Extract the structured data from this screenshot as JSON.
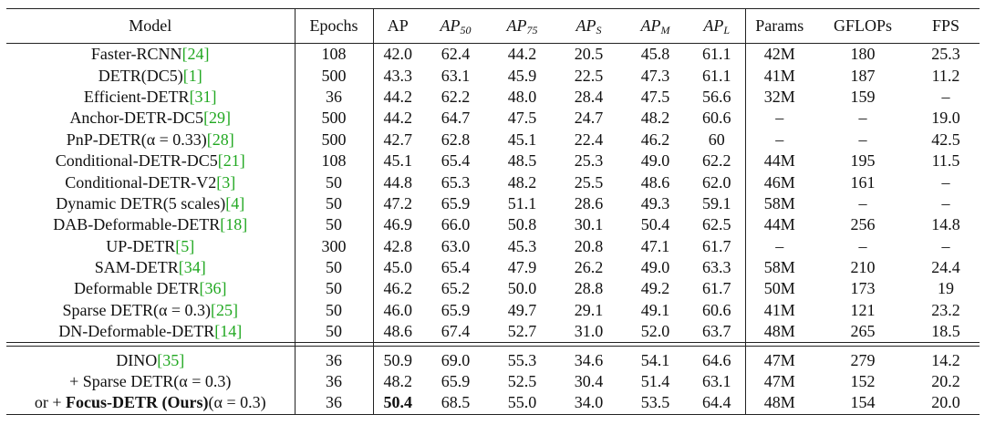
{
  "columns": [
    {
      "key": "model",
      "label": "Model"
    },
    {
      "key": "epochs",
      "label": "Epochs"
    },
    {
      "key": "ap",
      "label": "AP"
    },
    {
      "key": "ap50",
      "label": "AP",
      "sub": "50",
      "italic": true
    },
    {
      "key": "ap75",
      "label": "AP",
      "sub": "75",
      "italic": true
    },
    {
      "key": "aps",
      "label": "AP",
      "sub": "S",
      "italic": true
    },
    {
      "key": "apm",
      "label": "AP",
      "sub": "M",
      "italic": true
    },
    {
      "key": "apl",
      "label": "AP",
      "sub": "L",
      "italic": true
    },
    {
      "key": "params",
      "label": "Params"
    },
    {
      "key": "gflops",
      "label": "GFLOPs"
    },
    {
      "key": "fps",
      "label": "FPS"
    }
  ],
  "rows": [
    {
      "name": "Faster-RCNN",
      "ref": "[24]",
      "values": [
        "108",
        "42.0",
        "62.4",
        "44.2",
        "20.5",
        "45.8",
        "61.1",
        "42M",
        "180",
        "25.3"
      ]
    },
    {
      "name": "DETR(DC5)",
      "ref": "[1]",
      "values": [
        "500",
        "43.3",
        "63.1",
        "45.9",
        "22.5",
        "47.3",
        "61.1",
        "41M",
        "187",
        "11.2"
      ]
    },
    {
      "name": "Efficient-DETR",
      "ref": "[31]",
      "values": [
        "36",
        "44.2",
        "62.2",
        "48.0",
        "28.4",
        "47.5",
        "56.6",
        "32M",
        "159",
        "–"
      ]
    },
    {
      "name": "Anchor-DETR-DC5",
      "ref": "[29]",
      "values": [
        "500",
        "44.2",
        "64.7",
        "47.5",
        "24.7",
        "48.2",
        "60.6",
        "–",
        "–",
        "19.0"
      ]
    },
    {
      "name": "PnP-DETR(α = 0.33)",
      "ref": "[28]",
      "values": [
        "500",
        "42.7",
        "62.8",
        "45.1",
        "22.4",
        "46.2",
        "60",
        "–",
        "–",
        "42.5"
      ]
    },
    {
      "name": "Conditional-DETR-DC5",
      "ref": "[21]",
      "values": [
        "108",
        "45.1",
        "65.4",
        "48.5",
        "25.3",
        "49.0",
        "62.2",
        "44M",
        "195",
        "11.5"
      ]
    },
    {
      "name": "Conditional-DETR-V2",
      "ref": "[3]",
      "values": [
        "50",
        "44.8",
        "65.3",
        "48.2",
        "25.5",
        "48.6",
        "62.0",
        "46M",
        "161",
        "–"
      ]
    },
    {
      "name": "Dynamic DETR(5 scales)",
      "ref": "[4]",
      "values": [
        "50",
        "47.2",
        "65.9",
        "51.1",
        "28.6",
        "49.3",
        "59.1",
        "58M",
        "–",
        "–"
      ]
    },
    {
      "name": "DAB-Deformable-DETR",
      "ref": "[18]",
      "values": [
        "50",
        "46.9",
        "66.0",
        "50.8",
        "30.1",
        "50.4",
        "62.5",
        "44M",
        "256",
        "14.8"
      ]
    },
    {
      "name": "UP-DETR",
      "ref": "[5]",
      "values": [
        "300",
        "42.8",
        "63.0",
        "45.3",
        "20.8",
        "47.1",
        "61.7",
        "–",
        "–",
        "–"
      ]
    },
    {
      "name": "SAM-DETR",
      "ref": "[34]",
      "values": [
        "50",
        "45.0",
        "65.4",
        "47.9",
        "26.2",
        "49.0",
        "63.3",
        "58M",
        "210",
        "24.4"
      ]
    },
    {
      "name": "Deformable DETR",
      "ref": "[36]",
      "values": [
        "50",
        "46.2",
        "65.2",
        "50.0",
        "28.8",
        "49.2",
        "61.7",
        "50M",
        "173",
        "19"
      ]
    },
    {
      "name": "Sparse DETR(α = 0.3)",
      "ref": "[25]",
      "values": [
        "50",
        "46.0",
        "65.9",
        "49.7",
        "29.1",
        "49.1",
        "60.6",
        "41M",
        "121",
        "23.2"
      ]
    },
    {
      "name": "DN-Deformable-DETR",
      "ref": "[14]",
      "values": [
        "50",
        "48.6",
        "67.4",
        "52.7",
        "31.0",
        "52.0",
        "63.7",
        "48M",
        "265",
        "18.5"
      ]
    }
  ],
  "bottom_rows": [
    {
      "name": "DINO",
      "ref": "[35]",
      "values": [
        "36",
        "50.9",
        "69.0",
        "55.3",
        "34.6",
        "54.1",
        "64.6",
        "47M",
        "279",
        "14.2"
      ]
    },
    {
      "name": "+ Sparse DETR(α = 0.3)",
      "ref": "",
      "values": [
        "36",
        "48.2",
        "65.9",
        "52.5",
        "30.4",
        "51.4",
        "63.1",
        "47M",
        "152",
        "20.2"
      ]
    },
    {
      "prefix": "or + ",
      "name": "Focus-DETR (Ours)",
      "suffix": "(α = 0.3)",
      "ref": "",
      "bold_name": true,
      "bold_ap": true,
      "values": [
        "36",
        "50.4",
        "68.5",
        "55.0",
        "34.0",
        "53.5",
        "64.4",
        "48M",
        "154",
        "20.0"
      ]
    }
  ],
  "colors": {
    "ref": "#21a821",
    "text": "#111111",
    "rule": "#222222"
  }
}
